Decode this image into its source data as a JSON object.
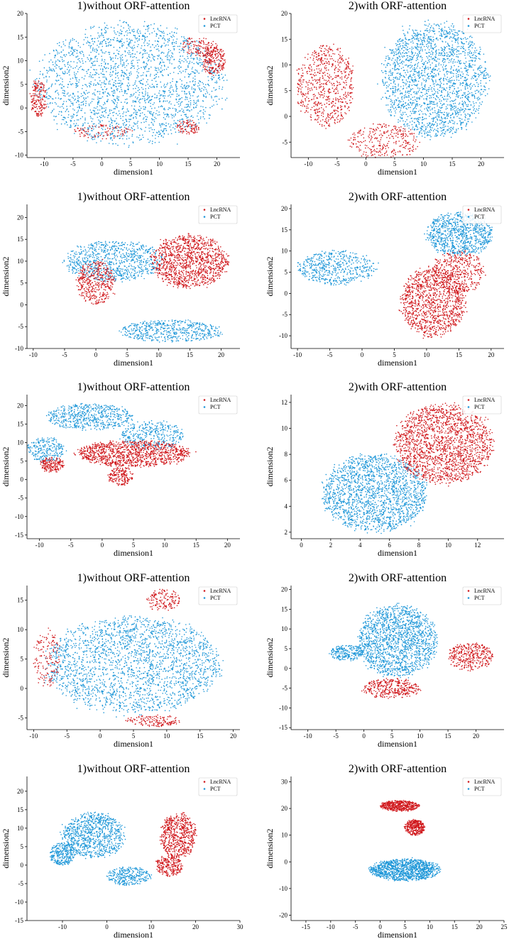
{
  "figure": {
    "colors": {
      "lnc": "#d0181c",
      "pct": "#1f97d8",
      "axis": "#000000",
      "legend_border": "#cccccc"
    },
    "legend": [
      "LncRNA",
      "PCT"
    ],
    "legend_position": "top-right",
    "icons": {
      "legend_marker": "dot"
    }
  },
  "chart_data": [
    {
      "type": "scatter",
      "title": "1)without ORF-attention",
      "xlabel": "dimension1",
      "ylabel": "dimension2",
      "xlim": [
        -13,
        24
      ],
      "ylim": [
        -10.5,
        20
      ],
      "xticks": [
        -10,
        -5,
        0,
        5,
        10,
        15,
        20
      ],
      "yticks": [
        -10,
        -5,
        0,
        5,
        10,
        15,
        20
      ],
      "legend": [
        "LncRNA",
        "PCT"
      ],
      "seed": 11,
      "series": [
        {
          "name": "PCT",
          "regions": [
            [
              5,
              5,
              16,
              12.5,
              0.75
            ]
          ]
        },
        {
          "name": "LncRNA",
          "regions": [
            [
              19.5,
              10,
              2,
              3,
              0.07
            ],
            [
              -11,
              2,
              1.4,
              4,
              0.06
            ],
            [
              17,
              13,
              3,
              2,
              0.04
            ],
            [
              15,
              -4,
              2,
              1.5,
              0.03
            ],
            [
              0,
              -5,
              5,
              1.5,
              0.03
            ]
          ]
        }
      ]
    },
    {
      "type": "scatter",
      "title": "2)with ORF-attention",
      "xlabel": "dimension1",
      "ylabel": "dimension2",
      "xlim": [
        -13,
        24
      ],
      "ylim": [
        -8,
        20
      ],
      "xticks": [
        -10,
        -5,
        0,
        5,
        10,
        15,
        20
      ],
      "yticks": [
        -5,
        0,
        5,
        10,
        15,
        20
      ],
      "legend": [
        "LncRNA",
        "PCT"
      ],
      "seed": 12,
      "series": [
        {
          "name": "PCT",
          "regions": [
            [
              12,
              7,
              9,
              11,
              0.68
            ]
          ]
        },
        {
          "name": "LncRNA",
          "regions": [
            [
              -7,
              6,
              5,
              8,
              0.22
            ],
            [
              3,
              -5,
              6,
              3.5,
              0.1
            ]
          ]
        }
      ]
    },
    {
      "type": "scatter",
      "title": "1)without ORF-attention",
      "xlabel": "dimension1",
      "ylabel": "dimension2",
      "xlim": [
        -11,
        23
      ],
      "ylim": [
        -10,
        23
      ],
      "xticks": [
        -10,
        -5,
        0,
        5,
        10,
        15,
        20
      ],
      "yticks": [
        -10,
        -5,
        0,
        5,
        10,
        15,
        20
      ],
      "legend": [
        "LncRNA",
        "PCT"
      ],
      "seed": 21,
      "series": [
        {
          "name": "PCT",
          "regions": [
            [
              3,
              10,
              8,
              4.5,
              0.28
            ],
            [
              12,
              -6,
              8,
              2.5,
              0.18
            ]
          ]
        },
        {
          "name": "LncRNA",
          "regions": [
            [
              15,
              10,
              6,
              6,
              0.4
            ],
            [
              0,
              5,
              3,
              5,
              0.14
            ]
          ]
        }
      ]
    },
    {
      "type": "scatter",
      "title": "2)with ORF-attention",
      "xlabel": "dimension1",
      "ylabel": "dimension2",
      "xlim": [
        -11,
        22
      ],
      "ylim": [
        -13,
        21
      ],
      "xticks": [
        -10,
        -5,
        0,
        5,
        10,
        15,
        20
      ],
      "yticks": [
        -10,
        -5,
        0,
        5,
        10,
        15,
        20
      ],
      "legend": [
        "LncRNA",
        "PCT"
      ],
      "seed": 22,
      "series": [
        {
          "name": "PCT",
          "regions": [
            [
              15,
              14,
              5,
              5,
              0.3
            ],
            [
              -4,
              6,
              6,
              4,
              0.18
            ]
          ]
        },
        {
          "name": "LncRNA",
          "regions": [
            [
              11,
              -2,
              5,
              8,
              0.38
            ],
            [
              15,
              5,
              4,
              5,
              0.14
            ]
          ]
        }
      ]
    },
    {
      "type": "scatter",
      "title": "1)without ORF-attention",
      "xlabel": "dimension1",
      "ylabel": "dimension2",
      "xlim": [
        -12,
        22
      ],
      "ylim": [
        -16,
        23
      ],
      "xticks": [
        -10,
        -5,
        0,
        5,
        10,
        15,
        20
      ],
      "yticks": [
        -15,
        -10,
        -5,
        0,
        5,
        10,
        15,
        20
      ],
      "legend": [
        "LncRNA",
        "PCT"
      ],
      "seed": 31,
      "series": [
        {
          "name": "PCT",
          "regions": [
            [
              -2,
              17,
              7,
              3.5,
              0.2
            ],
            [
              8,
              12,
              5,
              4,
              0.12
            ],
            [
              -9,
              8,
              3,
              3.5,
              0.08
            ]
          ]
        },
        {
          "name": "LncRNA",
          "regions": [
            [
              5,
              7,
              9,
              3.5,
              0.38
            ],
            [
              -8,
              4,
              2,
              2,
              0.06
            ],
            [
              3,
              1,
              2,
              2.5,
              0.06
            ]
          ]
        }
      ]
    },
    {
      "type": "scatter",
      "title": "2)with ORF-attention",
      "xlabel": "dimension1",
      "ylabel": "dimension2",
      "xlim": [
        -0.7,
        13.8
      ],
      "ylim": [
        1.5,
        12.6
      ],
      "xticks": [
        0,
        2,
        4,
        6,
        8,
        10,
        12
      ],
      "yticks": [
        2,
        4,
        6,
        8,
        10,
        12
      ],
      "legend": [
        "LncRNA",
        "PCT"
      ],
      "seed": 32,
      "series": [
        {
          "name": "PCT",
          "regions": [
            [
              5,
              5,
              3.5,
              3,
              0.62
            ]
          ]
        },
        {
          "name": "LncRNA",
          "regions": [
            [
              9.7,
              8.8,
              3.3,
              3,
              0.62
            ]
          ]
        }
      ]
    },
    {
      "type": "scatter",
      "title": "1)without ORF-attention",
      "xlabel": "dimension1",
      "ylabel": "dimension2",
      "xlim": [
        -11,
        21
      ],
      "ylim": [
        -7,
        17.5
      ],
      "xticks": [
        -10,
        -5,
        0,
        5,
        10,
        15,
        20
      ],
      "yticks": [
        -5,
        0,
        5,
        10,
        15
      ],
      "legend": [
        "LncRNA",
        "PCT"
      ],
      "seed": 41,
      "series": [
        {
          "name": "PCT",
          "regions": [
            [
              5,
              4,
              13,
              8,
              0.78
            ]
          ]
        },
        {
          "name": "LncRNA",
          "regions": [
            [
              -8,
              5,
              2,
              5,
              0.05
            ],
            [
              9.5,
              15,
              2.5,
              1.8,
              0.05
            ],
            [
              8,
              -5.5,
              4,
              1,
              0.05
            ]
          ]
        }
      ]
    },
    {
      "type": "scatter",
      "title": "2)with ORF-attention",
      "xlabel": "dimension1",
      "ylabel": "dimension2",
      "xlim": [
        -13,
        25
      ],
      "ylim": [
        -15.5,
        21
      ],
      "xticks": [
        -10,
        -5,
        0,
        5,
        10,
        15,
        20
      ],
      "yticks": [
        -15,
        -10,
        -5,
        0,
        5,
        10,
        15,
        20
      ],
      "legend": [
        "LncRNA",
        "PCT"
      ],
      "seed": 42,
      "series": [
        {
          "name": "PCT",
          "regions": [
            [
              6,
              7,
              7,
              9,
              0.55
            ],
            [
              -3,
              4,
              3,
              2,
              0.08
            ]
          ]
        },
        {
          "name": "LncRNA",
          "regions": [
            [
              19,
              3,
              4,
              3.5,
              0.12
            ],
            [
              5,
              -5,
              5,
              2.5,
              0.12
            ]
          ]
        }
      ]
    },
    {
      "type": "scatter",
      "title": "1)without ORF-attention",
      "xlabel": "dimension1",
      "ylabel": "dimension2",
      "xlim": [
        -18,
        30
      ],
      "ylim": [
        -15,
        24
      ],
      "xticks": [
        -10,
        0,
        10,
        20,
        30
      ],
      "yticks": [
        -15,
        -10,
        -5,
        0,
        5,
        10,
        15,
        20
      ],
      "legend": [
        "LncRNA",
        "PCT"
      ],
      "seed": 51,
      "series": [
        {
          "name": "PCT",
          "regions": [
            [
              -3,
              8,
              7,
              6,
              0.3
            ],
            [
              -10,
              3,
              3,
              3,
              0.1
            ],
            [
              5,
              -3,
              5,
              2.5,
              0.1
            ]
          ]
        },
        {
          "name": "LncRNA",
          "regions": [
            [
              16,
              8,
              4,
              6,
              0.2
            ],
            [
              14,
              0,
              3,
              3,
              0.08
            ]
          ]
        }
      ]
    },
    {
      "type": "scatter",
      "title": "2)with ORF-attention",
      "xlabel": "dimension1",
      "ylabel": "dimension2",
      "xlim": [
        -18,
        25
      ],
      "ylim": [
        -22,
        32
      ],
      "xticks": [
        -15,
        -10,
        -5,
        0,
        5,
        10,
        15,
        20,
        25
      ],
      "yticks": [
        -20,
        -10,
        0,
        10,
        20,
        30
      ],
      "legend": [
        "LncRNA",
        "PCT"
      ],
      "seed": 52,
      "series": [
        {
          "name": "PCT",
          "regions": [
            [
              5,
              -3,
              7,
              4,
              0.4
            ]
          ]
        },
        {
          "name": "LncRNA",
          "regions": [
            [
              4,
              21,
              4,
              2,
              0.16
            ],
            [
              7,
              13,
              2,
              3,
              0.12
            ]
          ]
        }
      ]
    }
  ]
}
